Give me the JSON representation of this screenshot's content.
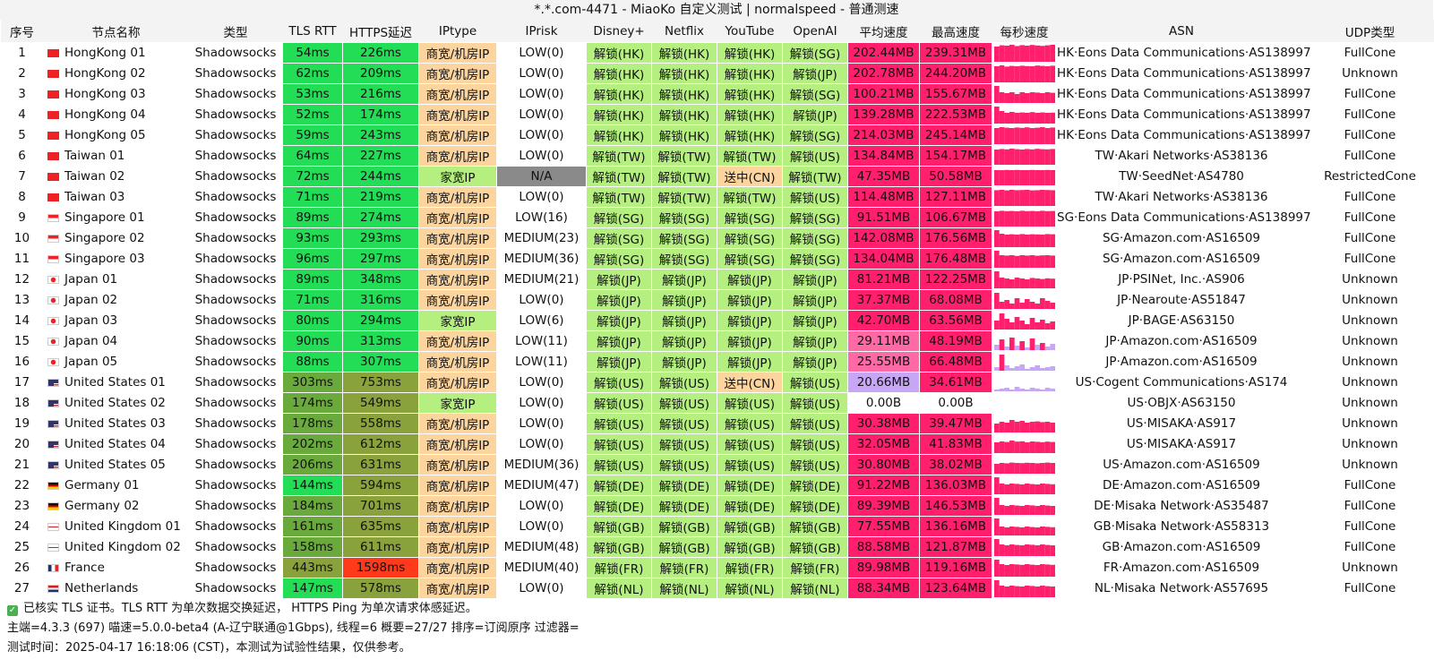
{
  "title": "*.*.com-4471 - MiaoKo 自定义测试 | normalspeed - 普通测速",
  "columns": [
    "序号",
    "节点名称",
    "类型",
    "TLS RTT",
    "HTTPS延迟",
    "IPtype",
    "IPrisk",
    "Disney+",
    "Netflix",
    "YouTube",
    "OpenAI",
    "平均速度",
    "最高速度",
    "每秒速度",
    "ASN",
    "UDP类型"
  ],
  "colors": {
    "green": "#22dd55",
    "dark_green": "#6aaa3c",
    "olive": "#8aa23c",
    "red_orange": "#ff3a1a",
    "orange": "#fcd49e",
    "light_green": "#b4ef80",
    "gray": "#8a8a8a",
    "pink": "#ff1f6c",
    "light_pink": "#ff6aa6",
    "lavender": "#c7a7f5"
  },
  "rows": [
    {
      "idx": "1",
      "flag": "hk",
      "name": "HongKong 01",
      "type": "Shadowsocks",
      "tls": "54ms",
      "https": "226ms",
      "iptype": "商宽/机房IP",
      "iprisk": "LOW(0)",
      "disney": "解锁(HK)",
      "netflix": "解锁(HK)",
      "youtube": "解锁(HK)",
      "openai": "解锁(SG)",
      "avg": "202.44MB",
      "max": "239.31MB",
      "spark": [
        0.85,
        0.92,
        0.9,
        0.95,
        0.88,
        0.93,
        0.9,
        0.94,
        0.91,
        0.89,
        0.92,
        0.95
      ],
      "asn": "HK·Eons Data Communications·AS138997",
      "udp": "FullCone"
    },
    {
      "idx": "2",
      "flag": "hk",
      "name": "HongKong 02",
      "type": "Shadowsocks",
      "tls": "62ms",
      "https": "209ms",
      "iptype": "商宽/机房IP",
      "iprisk": "LOW(0)",
      "disney": "解锁(HK)",
      "netflix": "解锁(HK)",
      "youtube": "解锁(HK)",
      "openai": "解锁(JP)",
      "avg": "202.78MB",
      "max": "244.20MB",
      "spark": [
        0.9,
        0.95,
        0.88,
        0.92,
        0.9,
        0.93,
        0.91,
        0.9,
        0.94,
        0.92,
        0.9,
        0.93
      ],
      "asn": "HK·Eons Data Communications·AS138997",
      "udp": "Unknown"
    },
    {
      "idx": "3",
      "flag": "hk",
      "name": "HongKong 03",
      "type": "Shadowsocks",
      "tls": "53ms",
      "https": "216ms",
      "iptype": "商宽/机房IP",
      "iprisk": "LOW(0)",
      "disney": "解锁(HK)",
      "netflix": "解锁(HK)",
      "youtube": "解锁(HK)",
      "openai": "解锁(SG)",
      "avg": "100.21MB",
      "max": "155.67MB",
      "spark": [
        0.95,
        0.6,
        0.55,
        0.6,
        0.5,
        0.6,
        0.55,
        0.6,
        0.58,
        0.55,
        0.6,
        0.57
      ],
      "asn": "HK·Eons Data Communications·AS138997",
      "udp": "FullCone"
    },
    {
      "idx": "4",
      "flag": "hk",
      "name": "HongKong 04",
      "type": "Shadowsocks",
      "tls": "52ms",
      "https": "174ms",
      "iptype": "商宽/机房IP",
      "iprisk": "LOW(0)",
      "disney": "解锁(HK)",
      "netflix": "解锁(HK)",
      "youtube": "解锁(HK)",
      "openai": "解锁(JP)",
      "avg": "139.28MB",
      "max": "222.53MB",
      "spark": [
        0.95,
        0.7,
        0.6,
        0.65,
        0.6,
        0.62,
        0.6,
        0.64,
        0.6,
        0.62,
        0.6,
        0.61
      ],
      "asn": "HK·Eons Data Communications·AS138997",
      "udp": "FullCone"
    },
    {
      "idx": "5",
      "flag": "hk",
      "name": "HongKong 05",
      "type": "Shadowsocks",
      "tls": "59ms",
      "https": "243ms",
      "iptype": "商宽/机房IP",
      "iprisk": "LOW(0)",
      "disney": "解锁(HK)",
      "netflix": "解锁(HK)",
      "youtube": "解锁(HK)",
      "openai": "解锁(SG)",
      "avg": "214.03MB",
      "max": "245.14MB",
      "spark": [
        0.9,
        0.95,
        0.92,
        0.9,
        0.93,
        0.91,
        0.94,
        0.9,
        0.92,
        0.95,
        0.9,
        0.93
      ],
      "asn": "HK·Eons Data Communications·AS138997",
      "udp": "FullCone"
    },
    {
      "idx": "6",
      "flag": "tw",
      "name": "Taiwan 01",
      "type": "Shadowsocks",
      "tls": "64ms",
      "https": "227ms",
      "iptype": "商宽/机房IP",
      "iprisk": "LOW(0)",
      "disney": "解锁(TW)",
      "netflix": "解锁(TW)",
      "youtube": "解锁(TW)",
      "openai": "解锁(US)",
      "avg": "134.84MB",
      "max": "154.17MB",
      "spark": [
        0.85,
        0.88,
        0.86,
        0.9,
        0.87,
        0.85,
        0.88,
        0.86,
        0.89,
        0.87,
        0.86,
        0.88
      ],
      "asn": "TW·Akari Networks·AS38136",
      "udp": "FullCone"
    },
    {
      "idx": "7",
      "flag": "tw",
      "name": "Taiwan 02",
      "type": "Shadowsocks",
      "tls": "72ms",
      "https": "244ms",
      "iptype": "家宽IP",
      "iprisk": "N/A",
      "disney": "解锁(TW)",
      "netflix": "解锁(TW)",
      "youtube": "送中(CN)",
      "openai": "解锁(TW)",
      "avg": "47.35MB",
      "max": "50.58MB",
      "spark": [
        0.85,
        0.85,
        0.86,
        0.85,
        0.86,
        0.85,
        0.85,
        0.86,
        0.85,
        0.85,
        0.86,
        0.85
      ],
      "asn": "TW·SeedNet·AS4780",
      "udp": "RestrictedCone"
    },
    {
      "idx": "8",
      "flag": "tw",
      "name": "Taiwan 03",
      "type": "Shadowsocks",
      "tls": "71ms",
      "https": "219ms",
      "iptype": "商宽/机房IP",
      "iprisk": "LOW(0)",
      "disney": "解锁(TW)",
      "netflix": "解锁(TW)",
      "youtube": "解锁(TW)",
      "openai": "解锁(US)",
      "avg": "114.48MB",
      "max": "127.11MB",
      "spark": [
        0.88,
        0.9,
        0.87,
        0.9,
        0.88,
        0.89,
        0.9,
        0.87,
        0.88,
        0.9,
        0.89,
        0.88
      ],
      "asn": "TW·Akari Networks·AS38136",
      "udp": "FullCone"
    },
    {
      "idx": "9",
      "flag": "sg",
      "name": "Singapore 01",
      "type": "Shadowsocks",
      "tls": "89ms",
      "https": "274ms",
      "iptype": "商宽/机房IP",
      "iprisk": "LOW(16)",
      "disney": "解锁(SG)",
      "netflix": "解锁(SG)",
      "youtube": "解锁(SG)",
      "openai": "解锁(SG)",
      "avg": "91.51MB",
      "max": "106.67MB",
      "spark": [
        0.85,
        0.88,
        0.86,
        0.87,
        0.85,
        0.88,
        0.86,
        0.87,
        0.85,
        0.88,
        0.86,
        0.87
      ],
      "asn": "SG·Eons Data Communications·AS138997",
      "udp": "FullCone"
    },
    {
      "idx": "10",
      "flag": "sg",
      "name": "Singapore 02",
      "type": "Shadowsocks",
      "tls": "93ms",
      "https": "293ms",
      "iptype": "商宽/机房IP",
      "iprisk": "MEDIUM(23)",
      "disney": "解锁(SG)",
      "netflix": "解锁(SG)",
      "youtube": "解锁(SG)",
      "openai": "解锁(SG)",
      "avg": "142.08MB",
      "max": "176.56MB",
      "spark": [
        0.95,
        0.75,
        0.7,
        0.72,
        0.7,
        0.73,
        0.7,
        0.72,
        0.71,
        0.7,
        0.73,
        0.72
      ],
      "asn": "SG·Amazon.com·AS16509",
      "udp": "FullCone"
    },
    {
      "idx": "11",
      "flag": "sg",
      "name": "Singapore 03",
      "type": "Shadowsocks",
      "tls": "96ms",
      "https": "297ms",
      "iptype": "商宽/机房IP",
      "iprisk": "MEDIUM(36)",
      "disney": "解锁(SG)",
      "netflix": "解锁(SG)",
      "youtube": "解锁(SG)",
      "openai": "解锁(SG)",
      "avg": "134.04MB",
      "max": "176.48MB",
      "spark": [
        0.95,
        0.7,
        0.68,
        0.7,
        0.66,
        0.7,
        0.68,
        0.7,
        0.67,
        0.69,
        0.7,
        0.68
      ],
      "asn": "SG·Amazon.com·AS16509",
      "udp": "FullCone"
    },
    {
      "idx": "12",
      "flag": "jp",
      "name": "Japan 01",
      "type": "Shadowsocks",
      "tls": "89ms",
      "https": "348ms",
      "iptype": "商宽/机房IP",
      "iprisk": "MEDIUM(21)",
      "disney": "解锁(JP)",
      "netflix": "解锁(JP)",
      "youtube": "解锁(JP)",
      "openai": "解锁(JP)",
      "avg": "81.21MB",
      "max": "122.25MB",
      "spark": [
        0.95,
        0.6,
        0.55,
        0.5,
        0.6,
        0.55,
        0.5,
        0.58,
        0.55,
        0.52,
        0.56,
        0.54
      ],
      "asn": "JP·PSINet, Inc.·AS906",
      "udp": "Unknown"
    },
    {
      "idx": "13",
      "flag": "jp",
      "name": "Japan 02",
      "type": "Shadowsocks",
      "tls": "71ms",
      "https": "316ms",
      "iptype": "商宽/机房IP",
      "iprisk": "LOW(0)",
      "disney": "解锁(JP)",
      "netflix": "解锁(JP)",
      "youtube": "解锁(JP)",
      "openai": "解锁(JP)",
      "avg": "37.37MB",
      "max": "68.08MB",
      "spark": [
        0.9,
        0.4,
        0.5,
        0.3,
        0.6,
        0.35,
        0.55,
        0.4,
        0.3,
        0.6,
        0.45,
        0.35
      ],
      "asn": "JP·Nearoute·AS51847",
      "udp": "Unknown"
    },
    {
      "idx": "14",
      "flag": "jp",
      "name": "Japan 03",
      "type": "Shadowsocks",
      "tls": "80ms",
      "https": "294ms",
      "iptype": "家宽IP",
      "iprisk": "LOW(6)",
      "disney": "解锁(JP)",
      "netflix": "解锁(JP)",
      "youtube": "解锁(JP)",
      "openai": "解锁(JP)",
      "avg": "42.70MB",
      "max": "63.56MB",
      "spark": [
        0.5,
        0.9,
        0.6,
        0.4,
        0.7,
        0.5,
        0.3,
        0.65,
        0.4,
        0.55,
        0.35,
        0.45
      ],
      "asn": "JP·BAGE·AS63150",
      "udp": "Unknown"
    },
    {
      "idx": "15",
      "flag": "jp",
      "name": "Japan 04",
      "type": "Shadowsocks",
      "tls": "90ms",
      "https": "313ms",
      "iptype": "商宽/机房IP",
      "iprisk": "LOW(11)",
      "disney": "解锁(JP)",
      "netflix": "解锁(JP)",
      "youtube": "解锁(JP)",
      "openai": "解锁(JP)",
      "avg": "29.11MB",
      "max": "48.19MB",
      "spark": [
        0.3,
        0.6,
        0.2,
        0.7,
        0.25,
        0.5,
        0.15,
        0.65,
        0.3,
        0.4,
        0.2,
        0.35
      ],
      "asn": "JP·Amazon.com·AS16509",
      "udp": "Unknown"
    },
    {
      "idx": "16",
      "flag": "jp",
      "name": "Japan 05",
      "type": "Shadowsocks",
      "tls": "88ms",
      "https": "307ms",
      "iptype": "商宽/机房IP",
      "iprisk": "LOW(11)",
      "disney": "解锁(JP)",
      "netflix": "解锁(JP)",
      "youtube": "解锁(JP)",
      "openai": "解锁(JP)",
      "avg": "25.55MB",
      "max": "66.48MB",
      "spark": [
        0.2,
        0.9,
        0.3,
        0.15,
        0.25,
        0.35,
        0.1,
        0.2,
        0.3,
        0.15,
        0.2,
        0.25
      ],
      "asn": "JP·Amazon.com·AS16509",
      "udp": "Unknown"
    },
    {
      "idx": "17",
      "flag": "us",
      "name": "United States 01",
      "type": "Shadowsocks",
      "tls": "303ms",
      "https": "753ms",
      "iptype": "商宽/机房IP",
      "iprisk": "LOW(0)",
      "disney": "解锁(US)",
      "netflix": "解锁(US)",
      "youtube": "送中(CN)",
      "openai": "解锁(US)",
      "avg": "20.66MB",
      "max": "34.61MB",
      "spark": [
        0.1,
        0.15,
        0.2,
        0.1,
        0.25,
        0.15,
        0.1,
        0.2,
        0.15,
        0.1,
        0.2,
        0.15
      ],
      "asn": "US·Cogent Communications·AS174",
      "udp": "Unknown"
    },
    {
      "idx": "18",
      "flag": "us",
      "name": "United States 02",
      "type": "Shadowsocks",
      "tls": "174ms",
      "https": "549ms",
      "iptype": "家宽IP",
      "iprisk": "LOW(0)",
      "disney": "解锁(US)",
      "netflix": "解锁(US)",
      "youtube": "解锁(US)",
      "openai": "解锁(US)",
      "avg": "0.00B",
      "max": "0.00B",
      "spark": [],
      "asn": "US·OBJX·AS63150",
      "udp": "Unknown"
    },
    {
      "idx": "19",
      "flag": "us",
      "name": "United States 03",
      "type": "Shadowsocks",
      "tls": "178ms",
      "https": "558ms",
      "iptype": "商宽/机房IP",
      "iprisk": "LOW(0)",
      "disney": "解锁(US)",
      "netflix": "解锁(US)",
      "youtube": "解锁(US)",
      "openai": "解锁(US)",
      "avg": "30.38MB",
      "max": "39.47MB",
      "spark": [
        0.5,
        0.6,
        0.55,
        0.7,
        0.6,
        0.65,
        0.55,
        0.6,
        0.62,
        0.58,
        0.6,
        0.55
      ],
      "asn": "US·MISAKA·AS917",
      "udp": "Unknown"
    },
    {
      "idx": "20",
      "flag": "us",
      "name": "United States 04",
      "type": "Shadowsocks",
      "tls": "202ms",
      "https": "612ms",
      "iptype": "商宽/机房IP",
      "iprisk": "LOW(0)",
      "disney": "解锁(US)",
      "netflix": "解锁(US)",
      "youtube": "解锁(US)",
      "openai": "解锁(US)",
      "avg": "32.05MB",
      "max": "41.83MB",
      "spark": [
        0.6,
        0.65,
        0.62,
        0.7,
        0.64,
        0.66,
        0.6,
        0.65,
        0.63,
        0.61,
        0.64,
        0.62
      ],
      "asn": "US·MISAKA·AS917",
      "udp": "Unknown"
    },
    {
      "idx": "21",
      "flag": "us",
      "name": "United States 05",
      "type": "Shadowsocks",
      "tls": "206ms",
      "https": "631ms",
      "iptype": "商宽/机房IP",
      "iprisk": "MEDIUM(36)",
      "disney": "解锁(US)",
      "netflix": "解锁(US)",
      "youtube": "解锁(US)",
      "openai": "解锁(US)",
      "avg": "30.80MB",
      "max": "38.02MB",
      "spark": [
        0.55,
        0.6,
        0.58,
        0.62,
        0.6,
        0.59,
        0.61,
        0.6,
        0.58,
        0.6,
        0.62,
        0.6
      ],
      "asn": "US·Amazon.com·AS16509",
      "udp": "Unknown"
    },
    {
      "idx": "22",
      "flag": "de",
      "name": "Germany 01",
      "type": "Shadowsocks",
      "tls": "144ms",
      "https": "594ms",
      "iptype": "商宽/机房IP",
      "iprisk": "MEDIUM(47)",
      "disney": "解锁(DE)",
      "netflix": "解锁(DE)",
      "youtube": "解锁(DE)",
      "openai": "解锁(DE)",
      "avg": "91.22MB",
      "max": "136.03MB",
      "spark": [
        0.95,
        0.6,
        0.55,
        0.6,
        0.58,
        0.55,
        0.6,
        0.57,
        0.55,
        0.6,
        0.58,
        0.56
      ],
      "asn": "DE·Amazon.com·AS16509",
      "udp": "FullCone"
    },
    {
      "idx": "23",
      "flag": "de",
      "name": "Germany 02",
      "type": "Shadowsocks",
      "tls": "184ms",
      "https": "701ms",
      "iptype": "商宽/机房IP",
      "iprisk": "LOW(0)",
      "disney": "解锁(DE)",
      "netflix": "解锁(DE)",
      "youtube": "解锁(DE)",
      "openai": "解锁(DE)",
      "avg": "89.39MB",
      "max": "146.53MB",
      "spark": [
        0.95,
        0.55,
        0.5,
        0.55,
        0.52,
        0.5,
        0.55,
        0.53,
        0.5,
        0.55,
        0.52,
        0.5
      ],
      "asn": "DE·Misaka Network·AS35487",
      "udp": "FullCone"
    },
    {
      "idx": "24",
      "flag": "gb",
      "name": "United Kingdom 01",
      "type": "Shadowsocks",
      "tls": "161ms",
      "https": "635ms",
      "iptype": "商宽/机房IP",
      "iprisk": "LOW(0)",
      "disney": "解锁(GB)",
      "netflix": "解锁(GB)",
      "youtube": "解锁(GB)",
      "openai": "解锁(GB)",
      "avg": "77.55MB",
      "max": "136.16MB",
      "spark": [
        0.95,
        0.5,
        0.45,
        0.5,
        0.48,
        0.45,
        0.5,
        0.47,
        0.45,
        0.5,
        0.48,
        0.46
      ],
      "asn": "GB·Misaka Network·AS58313",
      "udp": "FullCone"
    },
    {
      "idx": "25",
      "flag": "gb",
      "name": "United Kingdom 02",
      "type": "Shadowsocks",
      "tls": "158ms",
      "https": "611ms",
      "iptype": "商宽/机房IP",
      "iprisk": "MEDIUM(48)",
      "disney": "解锁(GB)",
      "netflix": "解锁(GB)",
      "youtube": "解锁(GB)",
      "openai": "解锁(GB)",
      "avg": "88.58MB",
      "max": "121.87MB",
      "spark": [
        0.95,
        0.65,
        0.6,
        0.65,
        0.62,
        0.6,
        0.65,
        0.63,
        0.6,
        0.65,
        0.62,
        0.6
      ],
      "asn": "GB·Amazon.com·AS16509",
      "udp": "FullCone"
    },
    {
      "idx": "26",
      "flag": "fr",
      "name": "France",
      "type": "Shadowsocks",
      "tls": "443ms",
      "https": "1598ms",
      "iptype": "商宽/机房IP",
      "iprisk": "MEDIUM(40)",
      "disney": "解锁(FR)",
      "netflix": "解锁(FR)",
      "youtube": "解锁(FR)",
      "openai": "解锁(FR)",
      "avg": "89.98MB",
      "max": "119.16MB",
      "spark": [
        0.95,
        0.7,
        0.65,
        0.7,
        0.68,
        0.66,
        0.7,
        0.67,
        0.65,
        0.7,
        0.68,
        0.66
      ],
      "asn": "FR·Amazon.com·AS16509",
      "udp": "Unknown"
    },
    {
      "idx": "27",
      "flag": "nl",
      "name": "Netherlands",
      "type": "Shadowsocks",
      "tls": "147ms",
      "https": "578ms",
      "iptype": "商宽/机房IP",
      "iprisk": "LOW(0)",
      "disney": "解锁(NL)",
      "netflix": "解锁(NL)",
      "youtube": "解锁(NL)",
      "openai": "解锁(NL)",
      "avg": "88.34MB",
      "max": "123.64MB",
      "spark": [
        0.95,
        0.65,
        0.6,
        0.65,
        0.62,
        0.6,
        0.65,
        0.63,
        0.6,
        0.65,
        0.62,
        0.6
      ],
      "asn": "NL·Misaka Network·AS57695",
      "udp": "FullCone"
    }
  ],
  "footer": {
    "check_icon": "check-icon",
    "line1": "已核实 TLS 证书。TLS RTT 为单次数据交换延迟， HTTPS Ping 为单次请求体感延迟。",
    "line2": "主端=4.3.3 (697) 喵速=5.0.0-beta4 (A-辽宁联通@1Gbps), 线程=6 概要=27/27 排序=订阅原序 过滤器=",
    "line3": "测试时间：2025-04-17 16:18:06 (CST)，本测试为试验性结果，仅供参考。"
  }
}
